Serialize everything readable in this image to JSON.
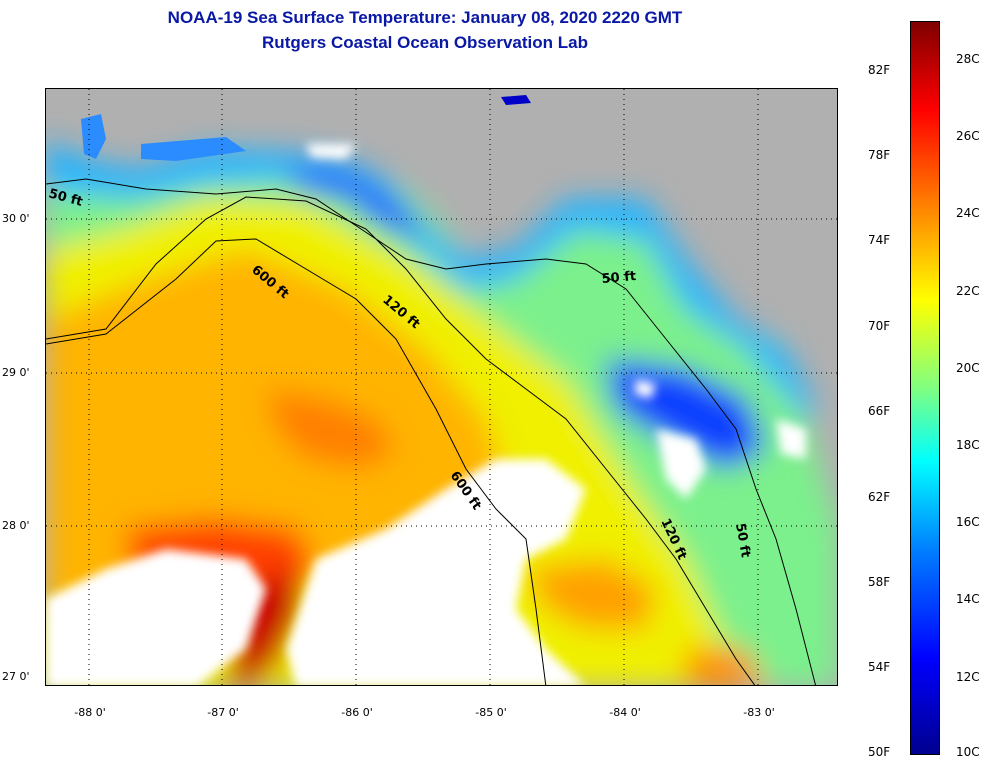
{
  "title": "NOAA-19 Sea Surface Temperature:  January 08, 2020 2220 GMT",
  "subtitle": "Rutgers Coastal Ocean Observation Lab",
  "colors": {
    "land": "#b0b0b0",
    "cloud": "#ffffff",
    "contour": "#000000",
    "title": "#0a18a6",
    "cold": "#0000c8",
    "cool": "#00b4ff",
    "mild": "#8cff64",
    "warm": "#ffd200",
    "hot": "#ff6400",
    "very_hot": "#c80000"
  },
  "map": {
    "lat_labels": [
      "30 0'",
      "29 0'",
      "28 0'",
      "27 0'"
    ],
    "lon_labels": [
      "-88 0'",
      "-87 0'",
      "-86 0'",
      "-85 0'",
      "-84 0'",
      "-83 0'"
    ],
    "contour_labels": [
      "50 ft",
      "600 ft",
      "120 ft",
      "50 ft",
      "600 ft",
      "120 ft",
      "50 ft"
    ]
  },
  "colorbar": {
    "fahrenheit": [
      "82F",
      "78F",
      "74F",
      "70F",
      "66F",
      "62F",
      "58F",
      "54F",
      "50F"
    ],
    "celsius": [
      "28C",
      "26C",
      "24C",
      "22C",
      "20C",
      "18C",
      "16C",
      "14C",
      "12C",
      "10C"
    ]
  }
}
